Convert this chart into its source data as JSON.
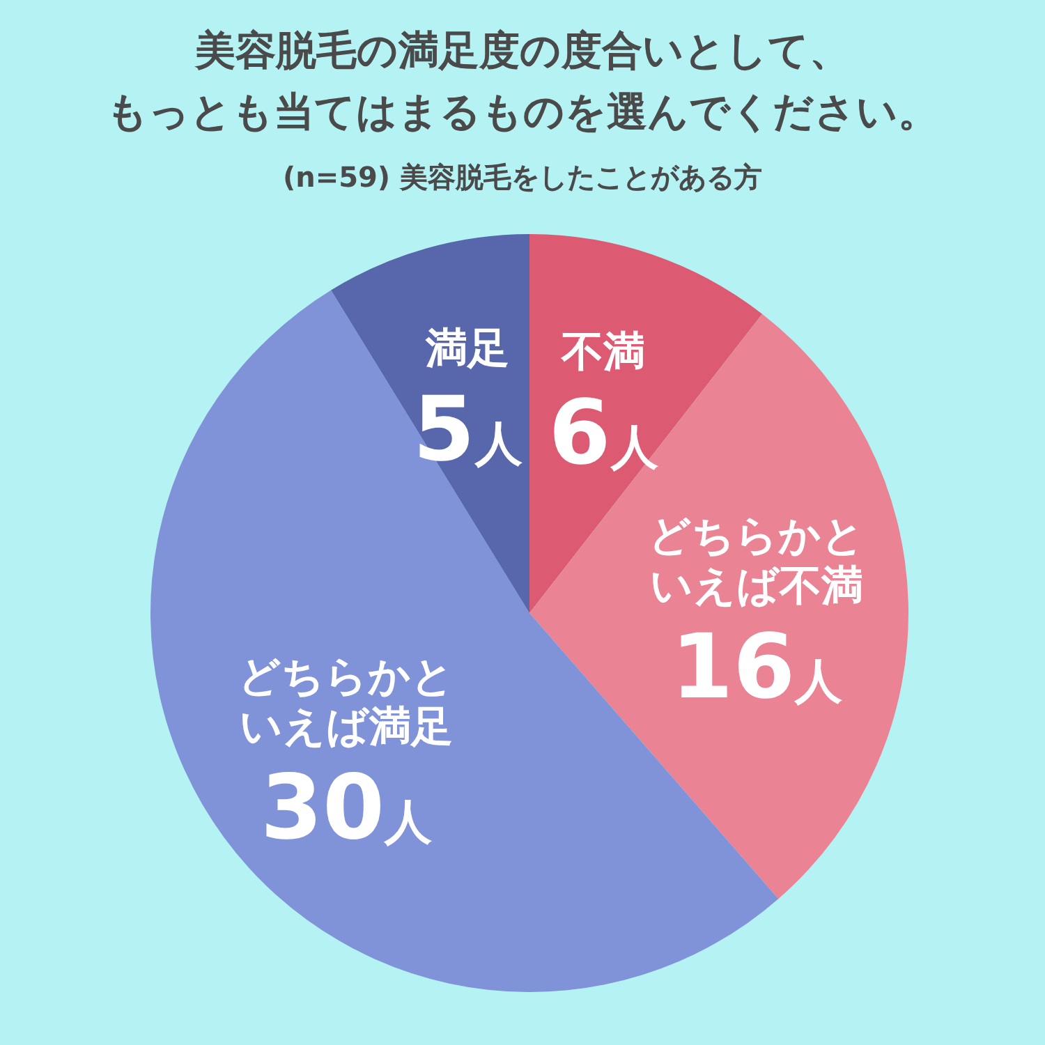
{
  "chart_data": {
    "type": "pie",
    "title": "美容脱毛の満足度の度合いとして、もっとも当てはまるものを選んでください。",
    "subtitle": "(n=59) 美容脱毛をしたことがある方",
    "categories": [
      "不満",
      "どちらかといえば不満",
      "どちらかといえば満足",
      "満足"
    ],
    "values": [
      6,
      16,
      30,
      5
    ],
    "colors": [
      "#dc5b72",
      "#ea8394",
      "#8093d8",
      "#5866ab"
    ],
    "value_labels": [
      "6人",
      "16人",
      "30人",
      "5人"
    ]
  }
}
